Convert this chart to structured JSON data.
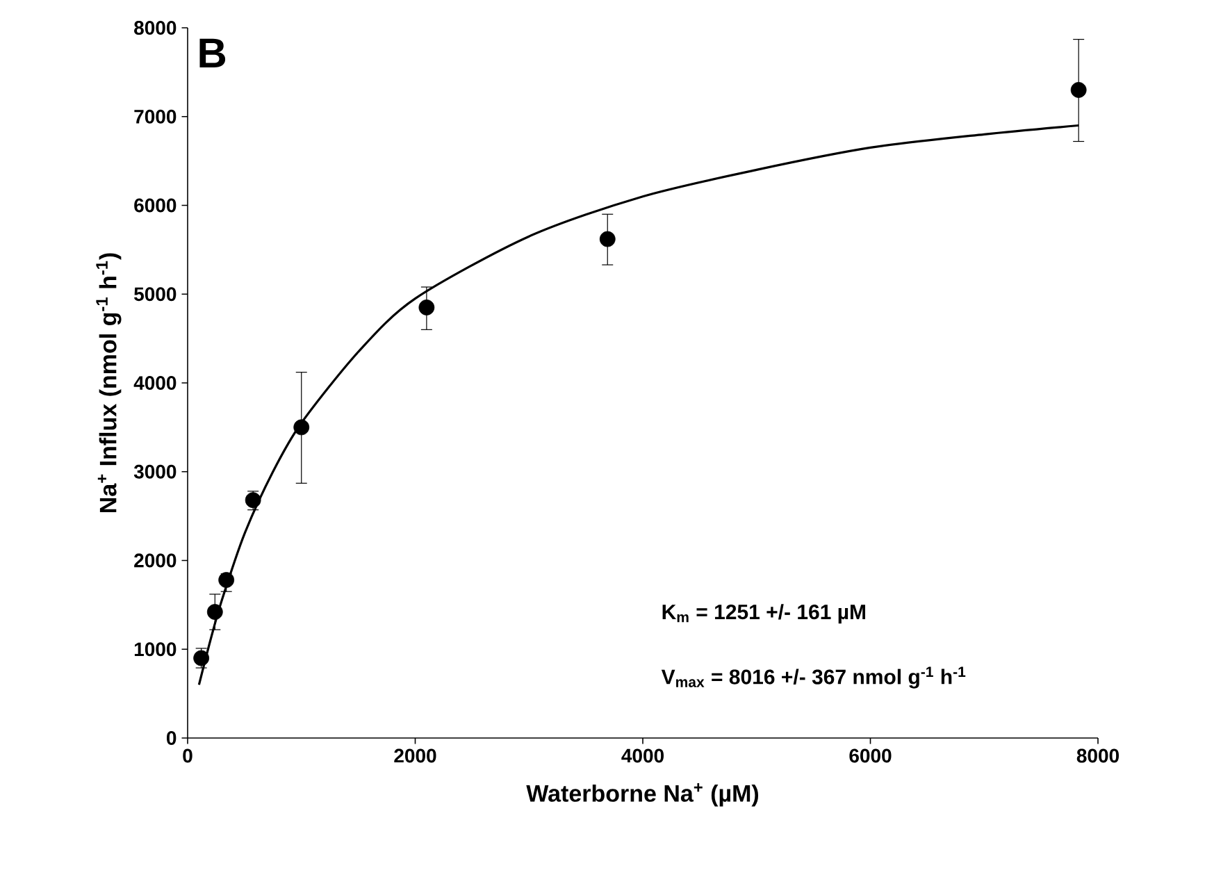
{
  "chart_data": {
    "type": "scatter",
    "xlabel": "Waterborne Na$^{+}$ (µM)",
    "ylabel": "Na$^{+}$ Influx (nmol g$^{-1}$ h$^{-1}$)",
    "xlim": [
      0,
      8000
    ],
    "ylim": [
      0,
      8000
    ],
    "xticks": [
      0,
      2000,
      4000,
      6000,
      8000
    ],
    "yticks": [
      0,
      1000,
      2000,
      3000,
      4000,
      5000,
      6000,
      7000,
      8000
    ],
    "grid": false,
    "annotations": [
      "B",
      "K$_{m}$ = 1251 +/- 161 µM",
      "V$_{max}$ = 8016 +/- 367 nmol g$^{-1}$ h$^{-1}$"
    ],
    "series": [
      {
        "color": "#000000",
        "marker": "circle",
        "x": [
          120,
          240,
          340,
          575,
          1000,
          2100,
          3690,
          7830
        ],
        "values": [
          900,
          1420,
          1780,
          2680,
          3500,
          4850,
          5620,
          7300
        ],
        "errors": [
          [
            790,
            1010
          ],
          [
            1220,
            1620
          ],
          [
            1650,
            1850
          ],
          [
            2570,
            2780
          ],
          [
            2870,
            4120
          ],
          [
            4600,
            5080
          ],
          [
            5330,
            5900
          ],
          [
            6720,
            7870
          ]
        ]
      },
      {
        "type": "line",
        "color": "#000000",
        "marker": "none",
        "line_style": "solid",
        "x": [
          100,
          200,
          300,
          500,
          750,
          1000,
          1500,
          2000,
          3000,
          4000,
          5000,
          6000,
          7000,
          7830
        ],
        "values": [
          600,
          1100,
          1550,
          2300,
          3000,
          3550,
          4350,
          4950,
          5650,
          6100,
          6400,
          6650,
          6800,
          6900
        ]
      }
    ]
  }
}
